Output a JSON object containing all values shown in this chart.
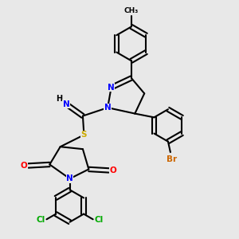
{
  "bg_color": "#e8e8e8",
  "bond_color": "#000000",
  "bond_width": 1.5,
  "atom_colors": {
    "N": "#0000ff",
    "O": "#ff0000",
    "S": "#ccaa00",
    "Br": "#cc6600",
    "Cl": "#00aa00",
    "H": "#000000",
    "C": "#000000"
  },
  "font_size": 7.5,
  "fig_size": [
    3.0,
    3.0
  ],
  "dpi": 100
}
